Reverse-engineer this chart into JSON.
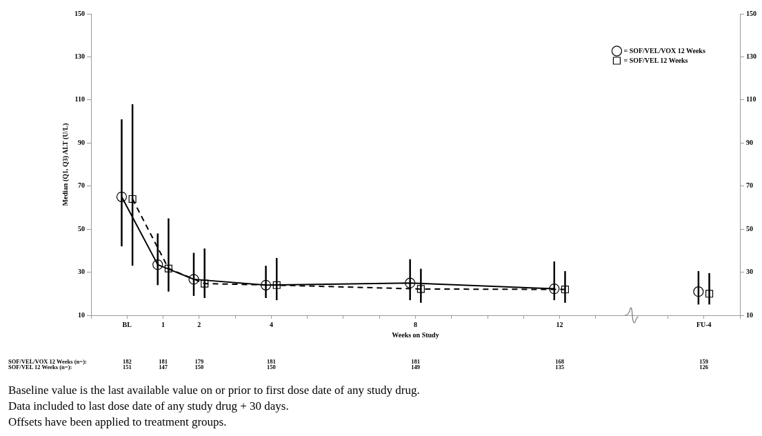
{
  "chart_data": {
    "type": "line",
    "xlabel": "Weeks on Study",
    "ylabel": "Median (Q1, Q3) ALT (U/L)",
    "xlim": [
      -1,
      17
    ],
    "xticks": [
      {
        "value": -1,
        "label": null
      },
      {
        "value": 0,
        "label": "BL"
      },
      1,
      2,
      {
        "value": 3,
        "label": null
      },
      4,
      {
        "value": 5,
        "label": null
      },
      {
        "value": 6,
        "label": null
      },
      {
        "value": 7,
        "label": null
      },
      8,
      {
        "value": 9,
        "label": null
      },
      {
        "value": 10,
        "label": null
      },
      {
        "value": 11,
        "label": null
      },
      12,
      {
        "value": 13,
        "label": null
      },
      {
        "value": 15,
        "label": null
      },
      {
        "value": 16,
        "label": "FU-4"
      },
      {
        "value": 17,
        "label": null
      }
    ],
    "ylim": [
      10,
      150
    ],
    "yticks": [
      10,
      30,
      50,
      70,
      90,
      110,
      130,
      150
    ],
    "y2lim": [
      10,
      150
    ],
    "y2ticks": [
      10,
      30,
      50,
      70,
      90,
      110,
      130,
      150
    ],
    "grid": false,
    "legend": "top right",
    "series": [
      {
        "name": "= SOF/VEL/VOX 12 Weeks",
        "color": "#000000",
        "marker": "circle",
        "line_style": "solid",
        "x": [
          -0.15,
          0.85,
          1.85,
          3.85,
          7.85,
          11.85,
          14,
          15.85
        ],
        "values": [
          65,
          33.5,
          26.7,
          24,
          25,
          22.3,
          null,
          21
        ],
        "errors": [
          [
            42,
            101
          ],
          [
            24,
            48
          ],
          [
            19,
            39
          ],
          [
            18,
            33
          ],
          [
            17,
            36
          ],
          [
            17,
            35
          ],
          null,
          [
            15,
            30.5
          ]
        ]
      },
      {
        "name": "= SOF/VEL 12 Weeks",
        "color": "#000000",
        "marker": "square",
        "line_style": "dashed",
        "x": [
          0.15,
          1.15,
          2.15,
          4.15,
          8.15,
          12.15,
          14,
          16.15
        ],
        "values": [
          64,
          31.7,
          24.7,
          24,
          22.2,
          22,
          null,
          20
        ],
        "errors": [
          [
            33,
            108
          ],
          [
            21,
            55
          ],
          [
            18,
            41
          ],
          [
            17,
            36.6
          ],
          [
            15.8,
            31.6
          ],
          [
            15.8,
            30.5
          ],
          null,
          [
            15,
            29.6
          ]
        ]
      }
    ],
    "annotations": [
      "SOF/VEL/VOX 12 Weeks (n=):",
      "182",
      "181",
      "179",
      "181",
      "181",
      "168",
      "159",
      "SOF/VEL 12 Weeks (n=):",
      "151",
      "147",
      "150",
      "150",
      "149",
      "135",
      "126",
      "Baseline value is the last available value on or prior to first dose date of any study drug.",
      "Data included to last dose date of any study drug + 30 days.",
      "Offsets have been applied to treatment groups."
    ]
  }
}
